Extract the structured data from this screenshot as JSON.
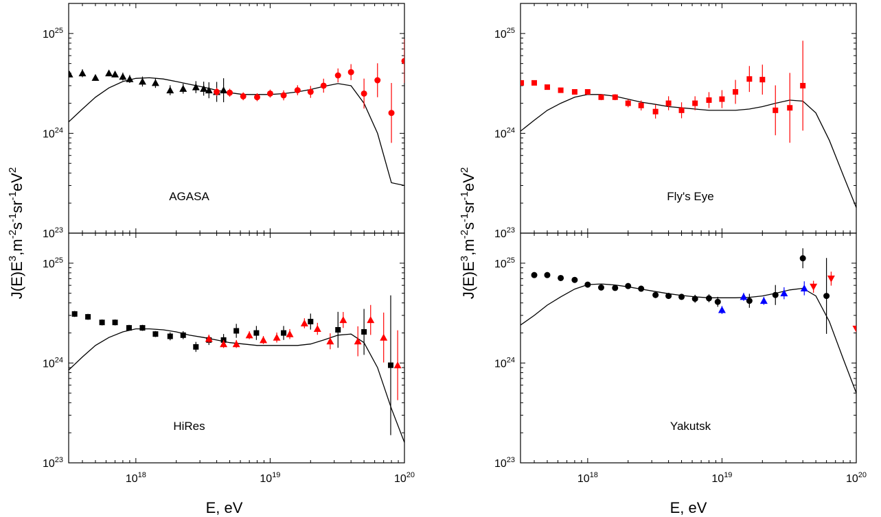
{
  "chart_data": [
    {
      "type": "scatter",
      "panel": "top-left",
      "label": "AGASA",
      "xlabel": "E, eV",
      "ylabel": "J(E)E^3, m^-2 s^-1 sr^-1 eV^2",
      "xscale": "log",
      "yscale": "log",
      "xlim": [
        3.16e+17,
        1e+20
      ],
      "ylim": [
        1e+23,
        2e+25
      ],
      "series": [
        {
          "marker": "triangle-up",
          "color": "#000000",
          "x": [
            3.2e+17,
            4e+17,
            5e+17,
            6.3e+17,
            7e+17,
            8e+17,
            9e+17,
            1.12e+18,
            1.4e+18,
            1.8e+18,
            2.25e+18,
            2.8e+18,
            3.2e+18,
            3.5e+18,
            4e+18,
            4.5e+18
          ],
          "y": [
            3.9e+24,
            4e+24,
            3.6e+24,
            4e+24,
            3.9e+24,
            3.7e+24,
            3.5e+24,
            3.3e+24,
            3.2e+24,
            2.7e+24,
            2.8e+24,
            2.9e+24,
            2.8e+24,
            2.7e+24,
            2.6e+24,
            2.7e+24
          ],
          "err": [
            0.03,
            0.04,
            0.03,
            0.03,
            0.03,
            0.04,
            0.04,
            0.05,
            0.05,
            0.05,
            0.05,
            0.06,
            0.07,
            0.08,
            0.1,
            0.12
          ]
        },
        {
          "marker": "circle",
          "color": "#ff0000",
          "x": [
            4e+18,
            5e+18,
            6.3e+18,
            8e+18,
            1e+19,
            1.26e+19,
            1.6e+19,
            2e+19,
            2.5e+19,
            3.2e+19,
            4e+19,
            5e+19,
            6.3e+19,
            8e+19,
            1e+20
          ],
          "y": [
            2.6e+24,
            2.55e+24,
            2.35e+24,
            2.3e+24,
            2.5e+24,
            2.4e+24,
            2.7e+24,
            2.6e+24,
            3e+24,
            3.8e+24,
            4.1e+24,
            2.5e+24,
            3.4e+24,
            1.6e+24,
            5.3e+24
          ],
          "err": [
            0.04,
            0.04,
            0.04,
            0.04,
            0.04,
            0.05,
            0.05,
            0.06,
            0.07,
            0.07,
            0.08,
            0.15,
            0.17,
            0.3,
            0.22
          ]
        }
      ],
      "model_curve": {
        "x": [
          3.16e+17,
          4e+17,
          5e+17,
          6.3e+17,
          8e+17,
          1e+18,
          1.26e+18,
          1.6e+18,
          2e+18,
          2.5e+18,
          3.2e+18,
          4e+18,
          5e+18,
          6.3e+18,
          8e+18,
          1e+19,
          1.26e+19,
          1.6e+19,
          2e+19,
          2.5e+19,
          3.2e+19,
          4e+19,
          5e+19,
          6.3e+19,
          8e+19,
          1e+20
        ],
        "y": [
          1.3e+24,
          1.75e+24,
          2.3e+24,
          2.85e+24,
          3.3e+24,
          3.55e+24,
          3.6e+24,
          3.5e+24,
          3.3e+24,
          3.1e+24,
          2.9e+24,
          2.7e+24,
          2.55e+24,
          2.45e+24,
          2.45e+24,
          2.45e+24,
          2.5e+24,
          2.6e+24,
          2.75e+24,
          2.95e+24,
          3.15e+24,
          3e+24,
          2e+24,
          1e+24,
          3.2e+23,
          3e+23
        ]
      }
    },
    {
      "type": "scatter",
      "panel": "top-right",
      "label": "Fly's Eye",
      "xlabel": "E, eV",
      "ylabel": "J(E)E^3, m^-2 s^-1 sr^-1 eV^2",
      "xscale": "log",
      "yscale": "log",
      "xlim": [
        3.16e+17,
        1e+20
      ],
      "ylim": [
        1e+23,
        2e+25
      ],
      "series": [
        {
          "marker": "square",
          "color": "#ff0000",
          "x": [
            3.2e+17,
            4e+17,
            5e+17,
            6.3e+17,
            8e+17,
            1e+18,
            1.26e+18,
            1.6e+18,
            2e+18,
            2.5e+18,
            3.2e+18,
            4e+18,
            5e+18,
            6.3e+18,
            8e+18,
            1e+19,
            1.26e+19,
            1.6e+19,
            2e+19,
            2.5e+19,
            3.2e+19,
            4e+19
          ],
          "y": [
            3.2e+24,
            3.2e+24,
            2.9e+24,
            2.7e+24,
            2.6e+24,
            2.6e+24,
            2.3e+24,
            2.3e+24,
            2e+24,
            1.9e+24,
            1.65e+24,
            2e+24,
            1.7e+24,
            2e+24,
            2.15e+24,
            2.2e+24,
            2.6e+24,
            3.5e+24,
            3.45e+24,
            1.7e+24,
            1.8e+24,
            3e+24
          ],
          "err": [
            0.02,
            0.02,
            0.02,
            0.02,
            0.02,
            0.02,
            0.03,
            0.03,
            0.04,
            0.05,
            0.07,
            0.07,
            0.08,
            0.07,
            0.08,
            0.09,
            0.12,
            0.13,
            0.15,
            0.25,
            0.35,
            0.45
          ]
        }
      ],
      "model_curve": {
        "x": [
          3.16e+17,
          4e+17,
          5e+17,
          6.3e+17,
          8e+17,
          1e+18,
          1.26e+18,
          1.6e+18,
          2e+18,
          2.5e+18,
          3.2e+18,
          4e+18,
          5e+18,
          6.3e+18,
          8e+18,
          1e+19,
          1.26e+19,
          1.6e+19,
          2e+19,
          2.5e+19,
          3.2e+19,
          4e+19,
          5e+19,
          6.3e+19,
          8e+19,
          1e+20
        ],
        "y": [
          1.05e+24,
          1.35e+24,
          1.7e+24,
          2e+24,
          2.3e+24,
          2.45e+24,
          2.45e+24,
          2.35e+24,
          2.2e+24,
          2.05e+24,
          1.95e+24,
          1.85e+24,
          1.8e+24,
          1.75e+24,
          1.7e+24,
          1.7e+24,
          1.7e+24,
          1.75e+24,
          1.85e+24,
          2e+24,
          2.15e+24,
          2.1e+24,
          1.6e+24,
          8.5e+23,
          3.8e+23,
          1.8e+23
        ]
      }
    },
    {
      "type": "scatter",
      "panel": "bottom-left",
      "label": "HiRes",
      "xlabel": "E, eV",
      "ylabel": "J(E)E^3, m^-2 s^-1 sr^-1 eV^2",
      "xscale": "log",
      "yscale": "log",
      "xlim": [
        3.16e+17,
        1e+20
      ],
      "ylim": [
        1e+23,
        2e+25
      ],
      "series": [
        {
          "marker": "square",
          "color": "#000000",
          "x": [
            3.5e+17,
            4.4e+17,
            5.6e+17,
            7e+17,
            8.9e+17,
            1.12e+18,
            1.4e+18,
            1.8e+18,
            2.25e+18,
            2.8e+18,
            3.5e+18,
            4.5e+18,
            5.6e+18,
            7.9e+18,
            1.26e+19,
            2e+19,
            3.2e+19,
            5e+19,
            7.9e+19
          ],
          "y": [
            3.1e+24,
            2.9e+24,
            2.55e+24,
            2.55e+24,
            2.25e+24,
            2.25e+24,
            1.95e+24,
            1.85e+24,
            1.9e+24,
            1.45e+24,
            1.7e+24,
            1.7e+24,
            2.1e+24,
            2e+24,
            2e+24,
            2.6e+24,
            2.15e+24,
            2.05e+24,
            9.5e+23
          ],
          "err": [
            0.03,
            0.03,
            0.03,
            0.03,
            0.03,
            0.03,
            0.03,
            0.04,
            0.04,
            0.05,
            0.05,
            0.06,
            0.07,
            0.07,
            0.07,
            0.08,
            0.18,
            0.23,
            0.7
          ]
        },
        {
          "marker": "triangle-up",
          "color": "#ff0000",
          "x": [
            3.5e+18,
            4.5e+18,
            5.6e+18,
            7e+18,
            8.9e+18,
            1.12e+19,
            1.4e+19,
            1.8e+19,
            2.25e+19,
            2.8e+19,
            3.5e+19,
            4.5e+19,
            5.6e+19,
            7e+19,
            8.9e+19
          ],
          "y": [
            1.75e+24,
            1.55e+24,
            1.55e+24,
            1.9e+24,
            1.7e+24,
            1.8e+24,
            1.95e+24,
            2.5e+24,
            2.2e+24,
            1.65e+24,
            2.7e+24,
            1.65e+24,
            2.7e+24,
            1.8e+24,
            9.5e+23
          ],
          "err": [
            0.04,
            0.04,
            0.04,
            0.04,
            0.04,
            0.05,
            0.05,
            0.05,
            0.06,
            0.08,
            0.08,
            0.15,
            0.15,
            0.25,
            0.35
          ]
        }
      ],
      "model_curve": {
        "x": [
          3.16e+17,
          4e+17,
          5e+17,
          6.3e+17,
          8e+17,
          1e+18,
          1.26e+18,
          1.6e+18,
          2e+18,
          2.5e+18,
          3.2e+18,
          4e+18,
          5e+18,
          6.3e+18,
          8e+18,
          1e+19,
          1.26e+19,
          1.6e+19,
          2e+19,
          2.5e+19,
          3.2e+19,
          4e+19,
          5e+19,
          6.3e+19,
          8e+19,
          1e+20
        ],
        "y": [
          8.5e+23,
          1.15e+24,
          1.5e+24,
          1.8e+24,
          2.05e+24,
          2.2e+24,
          2.2e+24,
          2.15e+24,
          2.05e+24,
          1.9e+24,
          1.8e+24,
          1.7e+24,
          1.6e+24,
          1.55e+24,
          1.5e+24,
          1.5e+24,
          1.5e+24,
          1.5e+24,
          1.55e+24,
          1.7e+24,
          1.9e+24,
          1.95e+24,
          1.6e+24,
          9e+23,
          3.5e+23,
          1.6e+23
        ]
      }
    },
    {
      "type": "scatter",
      "panel": "bottom-right",
      "label": "Yakutsk",
      "xlabel": "E, eV",
      "ylabel": "J(E)E^3, m^-2 s^-1 sr^-1 eV^2",
      "xscale": "log",
      "yscale": "log",
      "xlim": [
        3.16e+17,
        1e+20
      ],
      "ylim": [
        1e+23,
        2e+25
      ],
      "series": [
        {
          "marker": "circle",
          "color": "#000000",
          "x": [
            4e+17,
            5e+17,
            6.3e+17,
            8e+17,
            1e+18,
            1.26e+18,
            1.6e+18,
            2e+18,
            2.5e+18,
            3.2e+18,
            4e+18,
            5e+18,
            6.3e+18,
            8e+18,
            9.3e+18,
            1.6e+19,
            2.5e+19,
            4e+19,
            6e+19
          ],
          "y": [
            7.6e+24,
            7.6e+24,
            7.1e+24,
            6.8e+24,
            6.1e+24,
            5.7e+24,
            5.65e+24,
            5.9e+24,
            5.55e+24,
            4.8e+24,
            4.7e+24,
            4.6e+24,
            4.4e+24,
            4.45e+24,
            4.1e+24,
            4.2e+24,
            4.8e+24,
            1.12e+25,
            4.7e+24
          ],
          "err": [
            0.02,
            0.02,
            0.02,
            0.02,
            0.02,
            0.02,
            0.02,
            0.02,
            0.03,
            0.03,
            0.03,
            0.03,
            0.04,
            0.04,
            0.05,
            0.07,
            0.1,
            0.1,
            0.38
          ]
        },
        {
          "marker": "triangle-up",
          "color": "#0000ff",
          "x": [
            1e+19,
            1.45e+19,
            2.05e+19,
            2.9e+19,
            4.1e+19
          ],
          "y": [
            3.4e+24,
            4.6e+24,
            4.2e+24,
            5e+24,
            5.6e+24
          ],
          "err": [
            0.04,
            0.04,
            0.04,
            0.06,
            0.07
          ]
        },
        {
          "marker": "triangle-down",
          "color": "#ff0000",
          "x": [
            4.8e+19,
            6.5e+19,
            1e+20
          ],
          "y": [
            5.8e+24,
            7e+24,
            2.2e+24
          ],
          "err": [
            0.06,
            0.07,
            0.0
          ]
        }
      ],
      "model_curve": {
        "x": [
          3.16e+17,
          4e+17,
          5e+17,
          6.3e+17,
          8e+17,
          1e+18,
          1.26e+18,
          1.6e+18,
          2e+18,
          2.5e+18,
          3.2e+18,
          4e+18,
          5e+18,
          6.3e+18,
          8e+18,
          1e+19,
          1.26e+19,
          1.6e+19,
          2e+19,
          2.5e+19,
          3.2e+19,
          4e+19,
          5e+19,
          6.3e+19,
          8e+19,
          1e+20
        ],
        "y": [
          2.4e+24,
          3e+24,
          3.8e+24,
          4.6e+24,
          5.5e+24,
          6.1e+24,
          6.2e+24,
          6.05e+24,
          5.8e+24,
          5.5e+24,
          5.2e+24,
          4.95e+24,
          4.75e+24,
          4.6e+24,
          4.5e+24,
          4.5e+24,
          4.5e+24,
          4.55e+24,
          4.7e+24,
          5e+24,
          5.4e+24,
          5.6e+24,
          4.7e+24,
          2.6e+24,
          1.1e+24,
          5e+23
        ]
      }
    }
  ],
  "axes": {
    "x_tick_labels": [
      {
        "base": "10",
        "exp": "18"
      },
      {
        "base": "10",
        "exp": "19"
      },
      {
        "base": "10",
        "exp": "20"
      }
    ],
    "y_tick_labels": [
      {
        "base": "10",
        "exp": "23"
      },
      {
        "base": "10",
        "exp": "24"
      },
      {
        "base": "10",
        "exp": "25"
      }
    ],
    "xlabel": "E, eV",
    "ylabel_parts": [
      "J(E)E",
      "3",
      ",m",
      "-2",
      "s",
      "-1",
      "sr",
      "-1",
      "eV",
      "2"
    ]
  },
  "colors": {
    "black": "#000000",
    "red": "#ff0000",
    "blue": "#0000ff"
  }
}
